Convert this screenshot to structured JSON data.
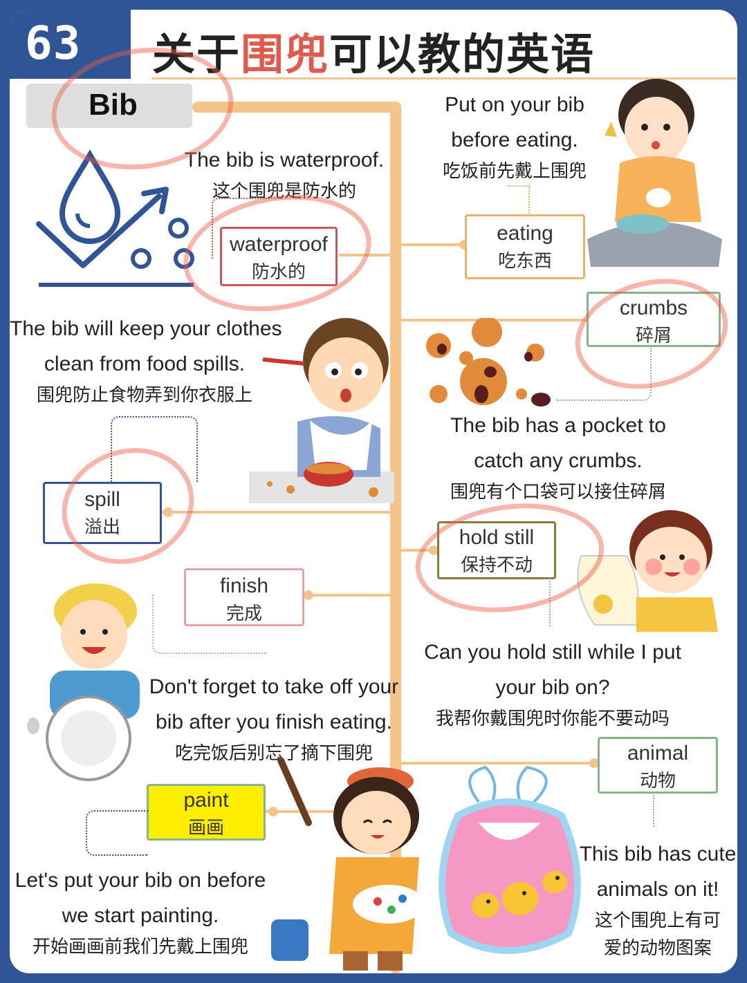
{
  "header": {
    "number": "63",
    "title_prefix": "关于",
    "title_highlight": "围兜",
    "title_suffix": "可以教的英语"
  },
  "main_word": "Bib",
  "entries": [
    {
      "id": "waterproof",
      "word_en": "waterproof",
      "word_zh": "防水的",
      "sentence_en": [
        "The bib is waterproof."
      ],
      "sentence_zh": [
        "这个围兜是防水的"
      ]
    },
    {
      "id": "eating",
      "word_en": "eating",
      "word_zh": "吃东西",
      "sentence_en": [
        "Put on your bib",
        "before eating."
      ],
      "sentence_zh": [
        "吃饭前先戴上围兜"
      ]
    },
    {
      "id": "crumbs",
      "word_en": "crumbs",
      "word_zh": "碎屑",
      "sentence_en": [
        "The bib has a pocket to",
        "catch any crumbs."
      ],
      "sentence_zh": [
        "围兜有个口袋可以接住碎屑"
      ]
    },
    {
      "id": "spill",
      "word_en": "spill",
      "word_zh": "溢出",
      "sentence_en": [
        "The bib will keep your clothes",
        "clean from food spills."
      ],
      "sentence_zh": [
        "围兜防止食物弄到你衣服上"
      ]
    },
    {
      "id": "hold_still",
      "word_en": "hold still",
      "word_zh": "保持不动",
      "sentence_en": [
        "Can you hold still while I put",
        "your bib on?"
      ],
      "sentence_zh": [
        "我帮你戴围兜时你能不要动吗"
      ]
    },
    {
      "id": "finish",
      "word_en": "finish",
      "word_zh": "完成",
      "sentence_en": [
        "Don't forget to take off your",
        "bib after you finish eating."
      ],
      "sentence_zh": [
        "吃完饭后别忘了摘下围兜"
      ]
    },
    {
      "id": "animal",
      "word_en": "animal",
      "word_zh": "动物",
      "sentence_en": [
        "This bib has cute",
        "animals on it!"
      ],
      "sentence_zh": [
        "这个围兜上有可",
        "爱的动物图案"
      ]
    },
    {
      "id": "paint",
      "word_en": "paint",
      "word_zh": "画画",
      "sentence_en": [
        "Let's put your bib on before",
        "we start painting."
      ],
      "sentence_zh": [
        "开始画画前我们先戴上围兜"
      ]
    }
  ],
  "colors": {
    "frame": "#2f5597",
    "accent_red": "#e05a4e",
    "branch": "#f5c48a",
    "waterproof": "#c9565c",
    "eating": "#e9b46a",
    "crumbs": "#86b58a",
    "spill": "#2f5597",
    "hold_still": "#8c7a3a",
    "finish": "#e0a4a4",
    "animal": "#86b58a",
    "paint_fill": "#ffee00",
    "paint_border": "#86b58a"
  },
  "icons": [
    "water-drop-check-icon",
    "girl-eating-illustration",
    "cookie-crumbs-illustration",
    "baby-spilling-food-illustration",
    "boy-with-bib-illustration",
    "boy-holding-plate-illustration",
    "girl-painting-illustration",
    "pink-bib-chicks-illustration"
  ]
}
